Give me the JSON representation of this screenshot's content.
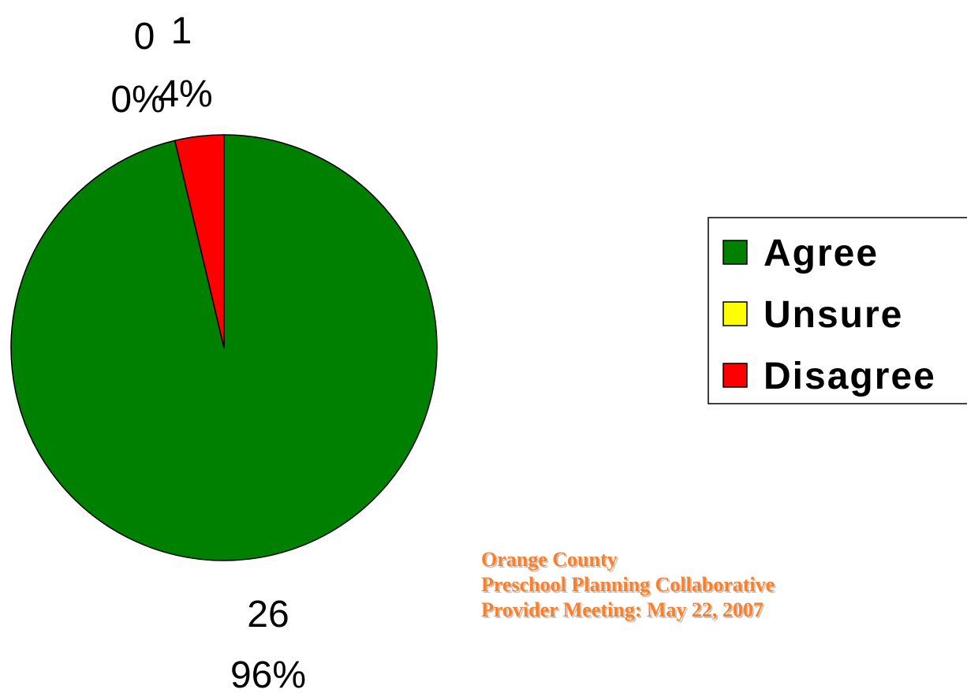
{
  "chart_data": {
    "type": "pie",
    "categories": [
      "Agree",
      "Unsure",
      "Disagree"
    ],
    "values": [
      26,
      0,
      1
    ],
    "percent_labels": [
      "96%",
      "0%",
      "4%"
    ],
    "colors": [
      "#008000",
      "#ffff00",
      "#ff0000"
    ],
    "legend": "right",
    "footer": [
      "Orange County",
      "Preschool Planning Collaborative",
      "Provider Meeting:  May 22, 2007"
    ]
  }
}
